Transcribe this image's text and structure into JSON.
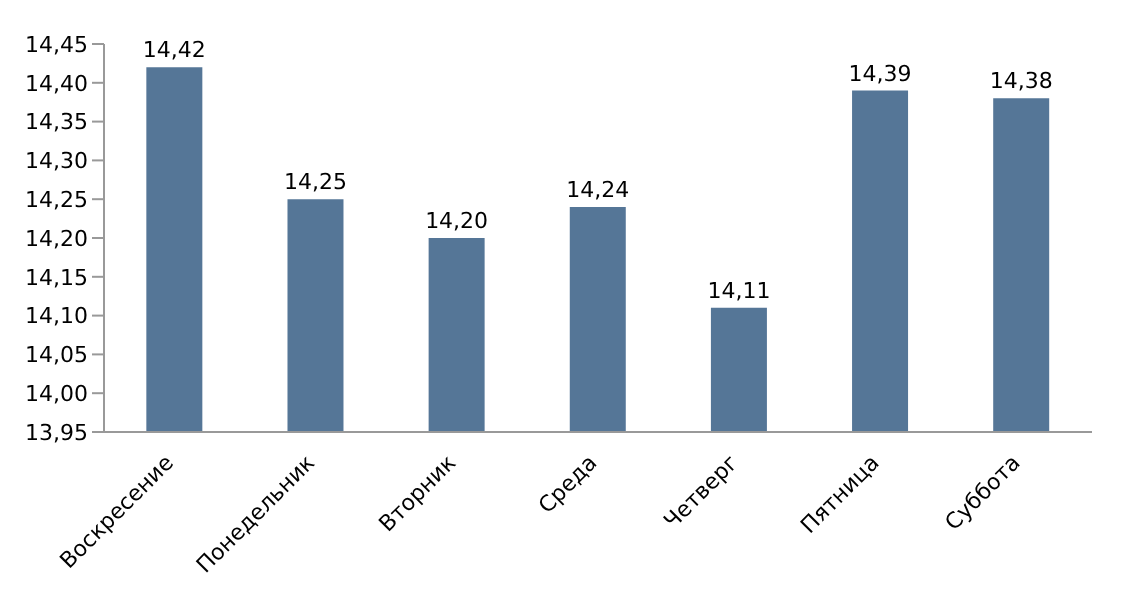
{
  "chart_data": {
    "type": "bar",
    "categories": [
      "Воскресение",
      "Понедельник",
      "Вторник",
      "Среда",
      "Четверг",
      "Пятница",
      "Суббота"
    ],
    "values": [
      14.42,
      14.25,
      14.2,
      14.24,
      14.11,
      14.39,
      14.38
    ],
    "value_labels": [
      "14,42",
      "14,25",
      "14,20",
      "14,24",
      "14,11",
      "14,39",
      "14,38"
    ],
    "color": "#557697",
    "ylim": [
      13.95,
      14.45
    ],
    "yticks": [
      {
        "value": 13.95,
        "label": "13,95"
      },
      {
        "value": 14.0,
        "label": "14,00"
      },
      {
        "value": 14.05,
        "label": "14,05"
      },
      {
        "value": 14.1,
        "label": "14,10"
      },
      {
        "value": 14.15,
        "label": "14,15"
      },
      {
        "value": 14.2,
        "label": "14,20"
      },
      {
        "value": 14.25,
        "label": "14,25"
      },
      {
        "value": 14.3,
        "label": "14,30"
      },
      {
        "value": 14.35,
        "label": "14,35"
      },
      {
        "value": 14.4,
        "label": "14,40"
      },
      {
        "value": 14.45,
        "label": "14,45"
      }
    ],
    "grid": false,
    "legend": false
  }
}
